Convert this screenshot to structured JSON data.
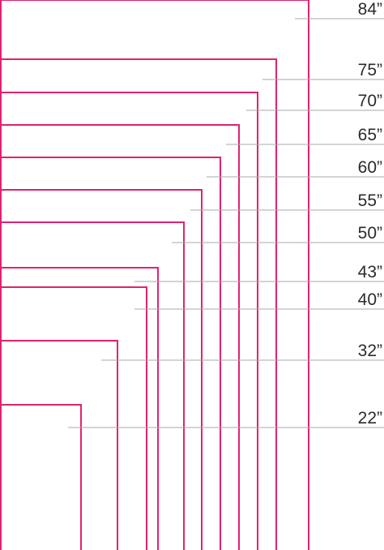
{
  "colors": {
    "outline": "#e2226f",
    "leader": "#a8a8a8",
    "label": "#2b2b2b"
  },
  "sizes": [
    {
      "label": "84”",
      "inches": 84
    },
    {
      "label": "75”",
      "inches": 75
    },
    {
      "label": "70”",
      "inches": 70
    },
    {
      "label": "65”",
      "inches": 65
    },
    {
      "label": "60”",
      "inches": 60
    },
    {
      "label": "55”",
      "inches": 55
    },
    {
      "label": "50”",
      "inches": 50
    },
    {
      "label": "43”",
      "inches": 43
    },
    {
      "label": "40”",
      "inches": 40
    },
    {
      "label": "32”",
      "inches": 32
    },
    {
      "label": "22”",
      "inches": 22
    }
  ]
}
